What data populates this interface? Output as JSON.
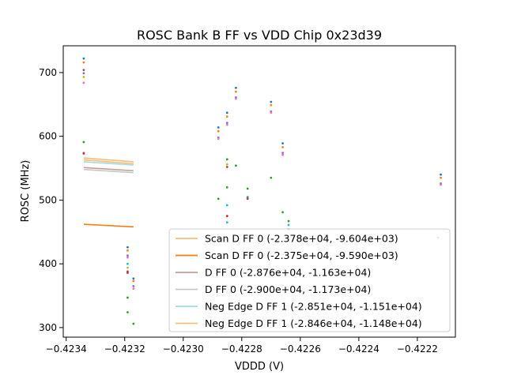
{
  "chart_data": {
    "type": "scatter",
    "title": "ROSC Bank B FF vs VDD Chip 0x23d39",
    "xlabel": "VDDD (V)",
    "ylabel": "ROSC (MHz)",
    "xlim": [
      -0.42341,
      -0.42207
    ],
    "ylim": [
      285,
      742
    ],
    "xticks": [
      -0.4234,
      -0.4232,
      -0.423,
      -0.4228,
      -0.4226,
      -0.4224,
      -0.4222
    ],
    "xtick_labels": [
      "−0.4234",
      "−0.4232",
      "−0.4230",
      "−0.4228",
      "−0.4226",
      "−0.4224",
      "−0.4222"
    ],
    "yticks": [
      300,
      400,
      500,
      600,
      700
    ],
    "ytick_labels": [
      "300",
      "400",
      "500",
      "600",
      "700"
    ],
    "grid": false,
    "legend_position": "lower-right",
    "fit_lines": [
      {
        "name": "Scan D FF 0 (-2.378e+04, -9.604e+03)",
        "color": "#ffbb78",
        "x": [
          -0.42334,
          -0.42317
        ],
        "y": [
          566,
          560
        ]
      },
      {
        "name": "Scan D FF 0 (-2.375e+04, -9.590e+03)",
        "color": "#ff7f0e",
        "x": [
          -0.42334,
          -0.42317
        ],
        "y": [
          462,
          458
        ]
      },
      {
        "name": "D FF 0 (-2.876e+04, -1.163e+04)",
        "color": "#c49c94",
        "x": [
          -0.42334,
          -0.42317
        ],
        "y": [
          551,
          546
        ]
      },
      {
        "name": "D FF 0 (-2.900e+04, -1.173e+04)",
        "color": "#c7c7c7",
        "x": [
          -0.42334,
          -0.42317
        ],
        "y": [
          548,
          543
        ]
      },
      {
        "name": "Neg Edge D FF 1 (-2.851e+04, -1.151e+04)",
        "color": "#9edae5",
        "x": [
          -0.42334,
          -0.42317
        ],
        "y": [
          560,
          555
        ]
      },
      {
        "name": "Neg Edge D FF 1 (-2.846e+04, -1.148e+04)",
        "color": "#ffbb78",
        "x": [
          -0.42334,
          -0.42317
        ],
        "y": [
          563,
          557
        ]
      }
    ],
    "scatter_series": [
      {
        "name": "blue",
        "color": "#1f77b4",
        "x": [
          -0.42334,
          -0.42319,
          -0.42317,
          -0.42288,
          -0.42285,
          -0.42282,
          -0.4227,
          -0.42266,
          -0.42212
        ],
        "y": [
          722,
          426,
          377,
          614,
          637,
          676,
          654,
          589,
          540
        ]
      },
      {
        "name": "orange",
        "color": "#ff7f0e",
        "x": [
          -0.42334,
          -0.42319,
          -0.42317,
          -0.42288,
          -0.42285,
          -0.42282,
          -0.4227,
          -0.42266,
          -0.42212
        ],
        "y": [
          716,
          421,
          373,
          608,
          631,
          670,
          649,
          583,
          535
        ]
      },
      {
        "name": "purple",
        "color": "#9467bd",
        "x": [
          -0.42334,
          -0.42319,
          -0.42317,
          -0.42288,
          -0.42285,
          -0.42282,
          -0.4227,
          -0.42266,
          -0.42212
        ],
        "y": [
          699,
          413,
          365,
          598,
          621,
          661,
          639,
          574,
          526
        ]
      },
      {
        "name": "pink",
        "color": "#e377c2",
        "x": [
          -0.42334,
          -0.42319,
          -0.42317,
          -0.42288,
          -0.42285,
          -0.42282,
          -0.4227,
          -0.42266,
          -0.42212
        ],
        "y": [
          684,
          410,
          361,
          596,
          618,
          659,
          637,
          571,
          524
        ]
      },
      {
        "name": "green",
        "color": "#2ca02c",
        "x": [
          -0.42334,
          -0.42319,
          -0.42319,
          -0.42317,
          -0.42288,
          -0.42285,
          -0.42285,
          -0.42282,
          -0.42278,
          -0.4227,
          -0.42266,
          -0.42264,
          -0.42213
        ],
        "y": [
          591,
          347,
          324,
          306,
          502,
          564,
          520,
          554,
          518,
          535,
          481,
          467,
          441
        ]
      },
      {
        "name": "teal",
        "color": "#17becf",
        "x": [
          -0.42334,
          -0.42319,
          -0.42285,
          -0.42285,
          -0.42278,
          -0.42264
        ],
        "y": [
          574,
          400,
          492,
          465,
          505,
          461
        ]
      },
      {
        "name": "red",
        "color": "#d62728",
        "x": [
          -0.42334,
          -0.42319,
          -0.42285,
          -0.42278,
          -0.42264
        ],
        "y": [
          573,
          386,
          475,
          502,
          454
        ]
      },
      {
        "name": "brown",
        "color": "#8c564b",
        "x": [
          -0.42334,
          -0.42319,
          -0.42285,
          -0.42278
        ],
        "y": [
          704,
          388,
          552,
          503
        ]
      },
      {
        "name": "olive",
        "color": "#bcbd22",
        "x": [
          -0.42334,
          -0.42319,
          -0.42285
        ],
        "y": [
          693,
          394,
          556
        ]
      }
    ]
  }
}
